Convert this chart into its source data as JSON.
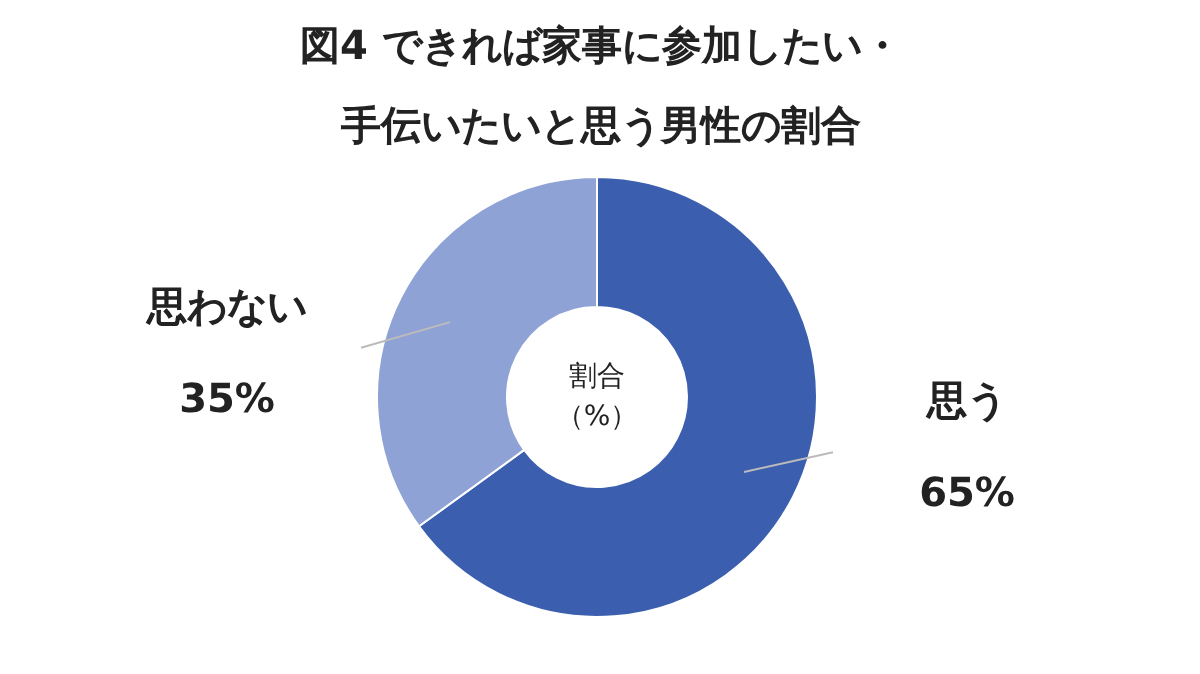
{
  "chart_data": {
    "type": "donut",
    "title": "図4 できれば家事に参加したい・",
    "subtitle": "手伝いたいと思う男性の割合",
    "categories": [
      "思う",
      "思わない"
    ],
    "values": [
      65,
      35
    ],
    "value_labels": [
      "65%",
      "35%"
    ],
    "colors": [
      "#3b5fae",
      "#8fa2d5"
    ],
    "annotations": [
      "割合",
      "（%）"
    ]
  }
}
